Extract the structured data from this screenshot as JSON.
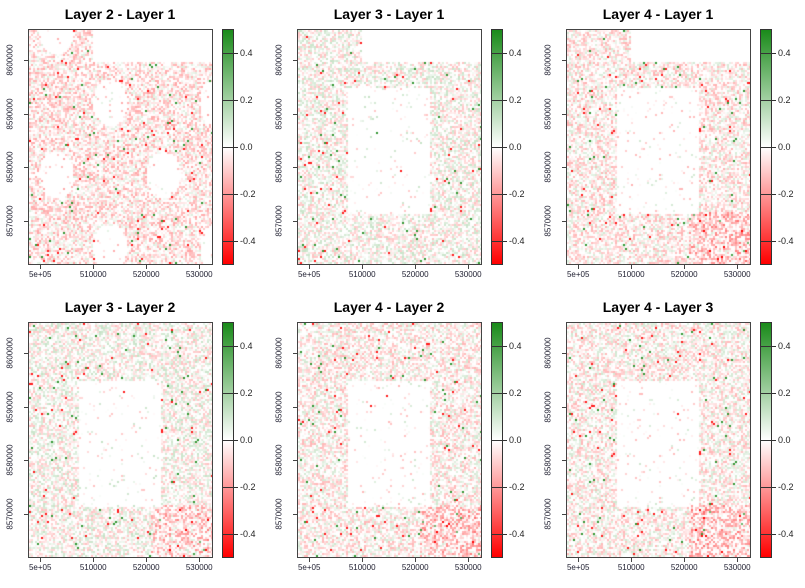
{
  "chart_data": [
    {
      "type": "heatmap",
      "title": "Layer 2 - Layer 1"
    },
    {
      "type": "heatmap",
      "title": "Layer 3 - Layer 1"
    },
    {
      "type": "heatmap",
      "title": "Layer 4 - Layer 1"
    },
    {
      "type": "heatmap",
      "title": "Layer 3 - Layer 2"
    },
    {
      "type": "heatmap",
      "title": "Layer 4 - Layer 2"
    },
    {
      "type": "heatmap",
      "title": "Layer 4 - Layer 3"
    }
  ],
  "axes": {
    "x_ticks": [
      {
        "value": 500000,
        "label": "5e+05"
      },
      {
        "value": 510000,
        "label": "510000"
      },
      {
        "value": 520000,
        "label": "520000"
      },
      {
        "value": 530000,
        "label": "530000"
      }
    ],
    "y_ticks": [
      {
        "value": 8570000,
        "label": "8570000"
      },
      {
        "value": 8580000,
        "label": "8580000"
      },
      {
        "value": 8590000,
        "label": "8590000"
      },
      {
        "value": 8600000,
        "label": "8600000"
      }
    ],
    "xlim": [
      497700,
      532600
    ],
    "ylim": [
      8561800,
      8605800
    ]
  },
  "colorbar": {
    "range": [
      -0.5,
      0.5
    ],
    "ticks": [
      {
        "value": 0.4,
        "label": "0.4"
      },
      {
        "value": 0.2,
        "label": "0.2"
      },
      {
        "value": 0.0,
        "label": "0.0"
      },
      {
        "value": -0.2,
        "label": "-0.2"
      },
      {
        "value": -0.4,
        "label": "-0.4"
      }
    ],
    "colors": {
      "low": "#ff0000",
      "mid": "#ffffff",
      "high": "#1a8a1a"
    }
  }
}
